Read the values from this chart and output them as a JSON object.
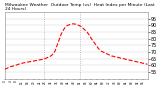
{
  "title": "Milwaukee Weather  Outdoor Temp (vs)  Heat Index per Minute (Last 24 Hours)",
  "line_color": "#ff0000",
  "line_style": "--",
  "line_width": 0.8,
  "background_color": "#ffffff",
  "grid_color": "#cccccc",
  "vline_color": "#aaaaaa",
  "vline_positions": [
    0.27,
    0.52
  ],
  "ylim": [
    50,
    100
  ],
  "yticks": [
    55,
    60,
    65,
    70,
    75,
    80,
    85,
    90,
    95
  ],
  "ylabel_fontsize": 3.5,
  "title_fontsize": 3.2,
  "x_data": [
    0,
    1,
    2,
    3,
    4,
    5,
    6,
    7,
    8,
    9,
    10,
    11,
    12,
    13,
    14,
    15,
    16,
    17,
    18,
    19,
    20,
    21,
    22,
    23,
    24,
    25,
    26,
    27,
    28,
    29,
    30,
    31,
    32,
    33,
    34,
    35,
    36,
    37,
    38,
    39,
    40,
    41,
    42,
    43,
    44,
    45,
    46,
    47,
    48,
    49,
    50,
    51,
    52,
    53,
    54,
    55,
    56,
    57,
    58,
    59,
    60,
    61,
    62,
    63,
    64,
    65,
    66,
    67,
    68,
    69,
    70,
    71,
    72,
    73,
    74,
    75,
    76,
    77,
    78,
    79,
    80,
    81,
    82,
    83,
    84,
    85,
    86,
    87,
    88,
    89,
    90,
    91,
    92,
    93,
    94,
    95,
    96,
    97,
    98,
    99
  ],
  "y_data": [
    57,
    57.5,
    58,
    58.5,
    59,
    59.2,
    59.5,
    60,
    60.2,
    60.5,
    61,
    61.2,
    61.5,
    61.8,
    62,
    62.2,
    62.4,
    62.6,
    62.8,
    63,
    63.2,
    63.4,
    63.6,
    63.8,
    64,
    64.2,
    64.4,
    64.8,
    65,
    65.5,
    66,
    66.5,
    67,
    68,
    69,
    71,
    74,
    77,
    80,
    83,
    85,
    87,
    88.5,
    89.5,
    90,
    90.5,
    90.8,
    91,
    91,
    90.8,
    90.5,
    90,
    89.5,
    89,
    88,
    87,
    86,
    85,
    83.5,
    82,
    80,
    78.5,
    77,
    75.5,
    74,
    72.5,
    71.5,
    70.5,
    70,
    69.5,
    69,
    68.5,
    68,
    67.5,
    67,
    66.8,
    66.5,
    66.2,
    66,
    65.8,
    65.5,
    65,
    65,
    64.8,
    64.5,
    64.2,
    64,
    63.8,
    63.5,
    63.2,
    63,
    62.8,
    62.5,
    62.2,
    62,
    61.8,
    61.5,
    61.2,
    61,
    60.8
  ]
}
